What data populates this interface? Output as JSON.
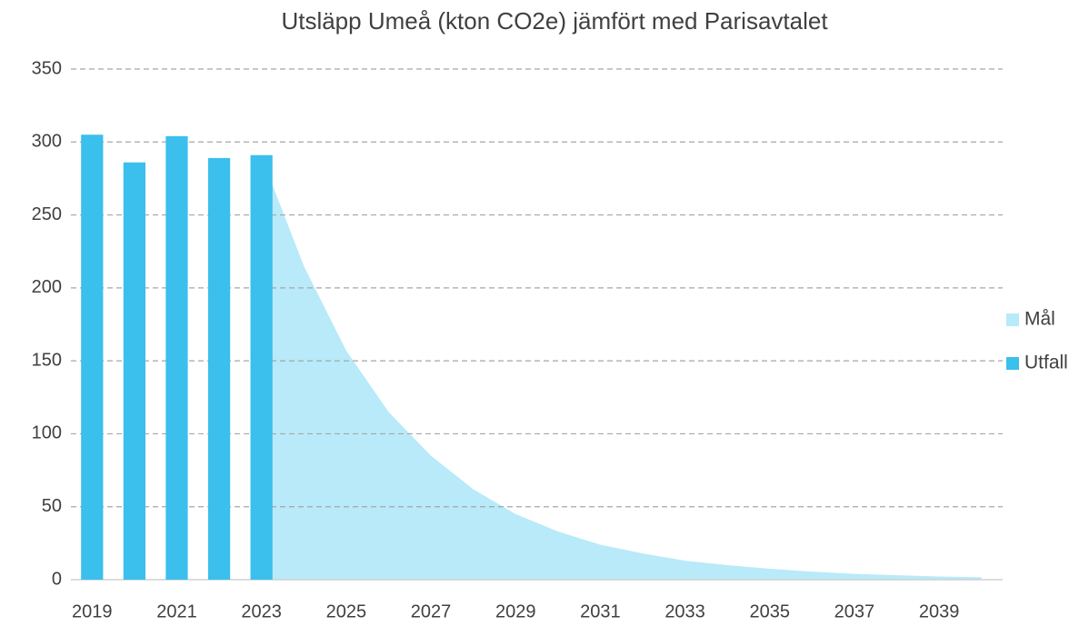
{
  "chart_data": {
    "type": "bar-area",
    "title": "Utsläpp Umeå (kton CO2e) jämfört med Parisavtalet",
    "categories": [
      "2019",
      null,
      "2021",
      null,
      "2023",
      null,
      "2025",
      null,
      "2027",
      null,
      "2029",
      null,
      "2031",
      null,
      "2033",
      null,
      "2035",
      null,
      "2037",
      null,
      "2039",
      null
    ],
    "series": [
      {
        "name": "Mål",
        "kind": "area",
        "color": "#b8eaf9",
        "values": [
          null,
          null,
          null,
          null,
          290,
          215,
          157,
          115,
          85,
          62,
          45,
          33,
          24,
          18,
          13,
          10,
          7.5,
          5.5,
          4,
          3,
          2.2,
          1.6
        ]
      },
      {
        "name": "Utfall",
        "kind": "bar",
        "color": "#3bbfec",
        "values": [
          305,
          286,
          304,
          289,
          291,
          null,
          null,
          null,
          null,
          null,
          null,
          null,
          null,
          null,
          null,
          null,
          null,
          null,
          null,
          null,
          null,
          null
        ]
      }
    ],
    "ylim": [
      0,
      350
    ],
    "yticks": [
      0,
      50,
      100,
      150,
      200,
      250,
      300,
      350
    ],
    "grid": true,
    "legend": "right"
  }
}
